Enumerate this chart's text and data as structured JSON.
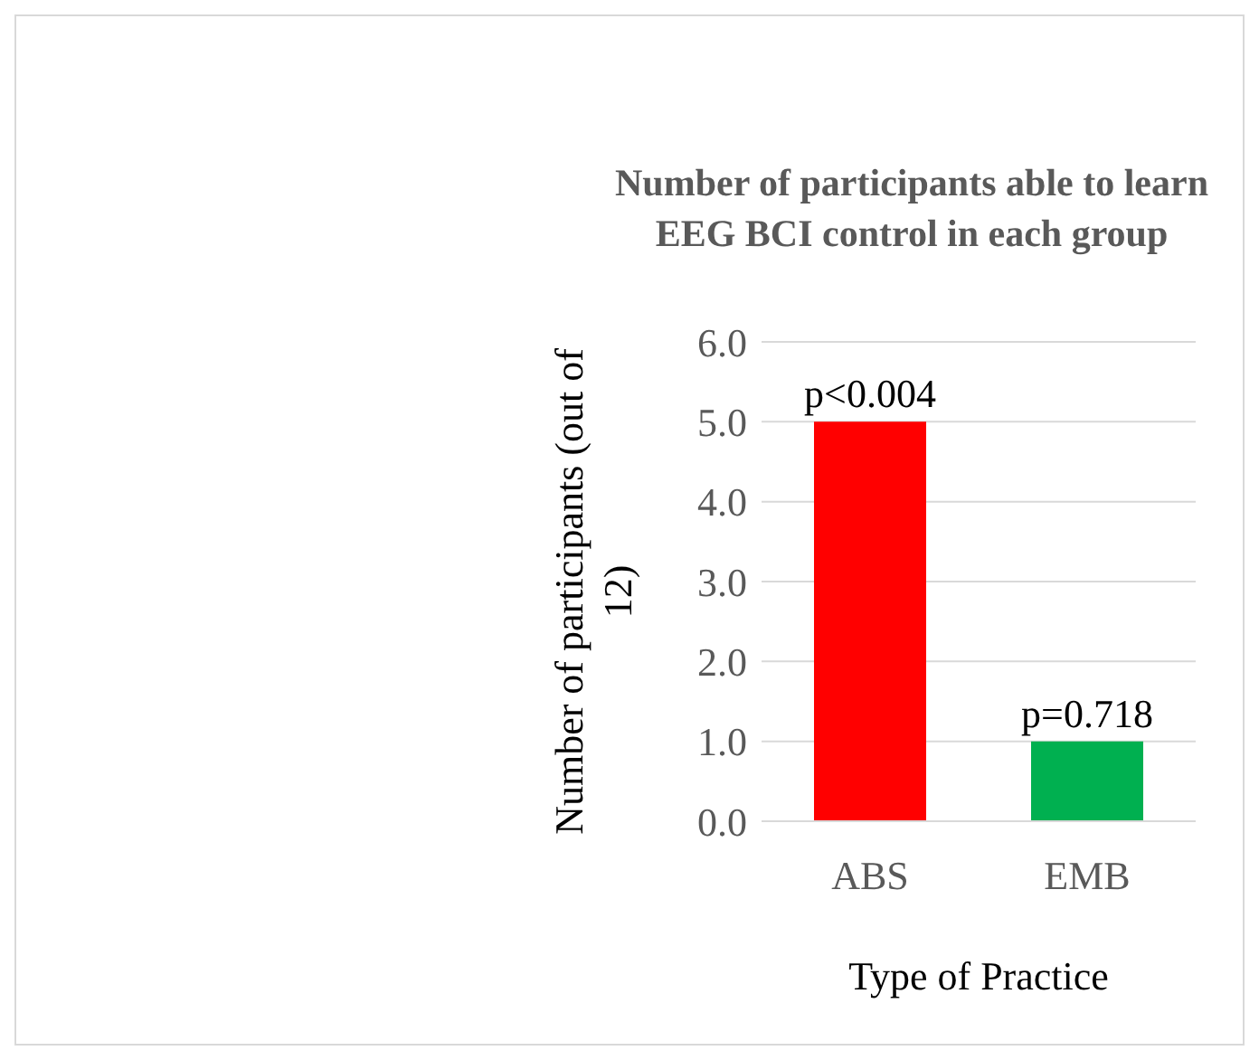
{
  "chart_data": {
    "type": "bar",
    "title": "Number of participants able to learn EEG BCI control in each group",
    "xlabel": "Type of Practice",
    "ylabel": "Number of participants (out of 12)",
    "categories": [
      "ABS",
      "EMB"
    ],
    "values": [
      5,
      1
    ],
    "colors": [
      "#ff0000",
      "#00b050"
    ],
    "ylim": [
      0,
      6
    ],
    "yticks": [
      {
        "value": 0,
        "label": "0.0"
      },
      {
        "value": 1,
        "label": "1.0"
      },
      {
        "value": 2,
        "label": "2.0"
      },
      {
        "value": 3,
        "label": "3.0"
      },
      {
        "value": 4,
        "label": "4.0"
      },
      {
        "value": 5,
        "label": "5.0"
      },
      {
        "value": 6,
        "label": "6.0"
      }
    ],
    "grid": "y",
    "annotations": [
      {
        "text": "p<0.004",
        "x": "ABS",
        "y": 5
      },
      {
        "text": "p=0.718",
        "x": "EMB",
        "y": 1
      }
    ]
  }
}
